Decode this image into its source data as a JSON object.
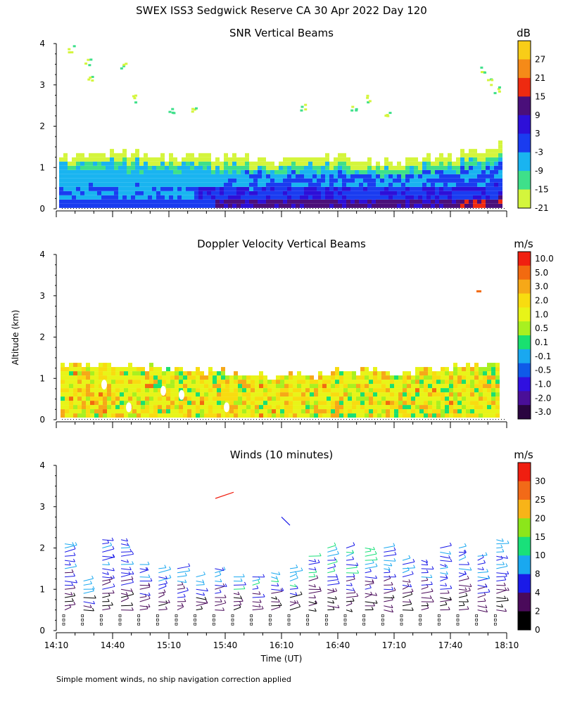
{
  "title": "SWEX ISS3 Sedgwick Reserve CA  30 Apr 2022 Day 120",
  "ylabel": "Altitude (km)",
  "xlabel": "Time (UT)",
  "footnote": "Simple moment winds, no ship navigation correction applied",
  "x_tick_labels": [
    "14:10",
    "14:40",
    "15:10",
    "15:40",
    "16:10",
    "16:40",
    "17:10",
    "17:40",
    "18:10"
  ],
  "chart_data": [
    {
      "type": "heatmap",
      "title": "SNR Vertical Beams",
      "xlabel": "Time (UT)",
      "ylabel": "Altitude (km)",
      "x_range": [
        "14:10",
        "18:10"
      ],
      "ylim": [
        0,
        4
      ],
      "y_ticks": [
        0,
        1,
        2,
        3,
        4
      ],
      "colorbar": {
        "unit": "dB",
        "levels": [
          -21,
          -15,
          -9,
          -3,
          3,
          9,
          15,
          21,
          27
        ],
        "colors": [
          "#d4f53c",
          "#3ee08a",
          "#19b4f0",
          "#1a3cf0",
          "#2d0fd8",
          "#4a0f7a",
          "#ee2a10",
          "#f58a18",
          "#f8cd18"
        ]
      },
      "echo_top_km": [
        {
          "t": "14:10",
          "top": 1.2
        },
        {
          "t": "14:40",
          "top": 1.3
        },
        {
          "t": "15:10",
          "top": 1.2
        },
        {
          "t": "15:40",
          "top": 1.2
        },
        {
          "t": "16:10",
          "top": 1.1
        },
        {
          "t": "16:40",
          "top": 1.2
        },
        {
          "t": "17:10",
          "top": 1.1
        },
        {
          "t": "17:40",
          "top": 1.2
        },
        {
          "t": "18:10",
          "top": 1.5
        }
      ]
    },
    {
      "type": "heatmap",
      "title": "Doppler Velocity Vertical Beams",
      "xlabel": "Time (UT)",
      "ylabel": "Altitude (km)",
      "x_range": [
        "14:10",
        "18:10"
      ],
      "ylim": [
        0,
        4
      ],
      "y_ticks": [
        0,
        1,
        2,
        3,
        4
      ],
      "colorbar": {
        "unit": "m/s",
        "levels": [
          10.0,
          5.0,
          3.0,
          2.0,
          1.0,
          0.5,
          0.1,
          -0.1,
          -0.5,
          -1.0,
          -2.0,
          -3.0
        ],
        "level_labels": [
          "10.0",
          "5.0",
          "3.0",
          "2.0",
          "1.0",
          "0.5",
          "0.1",
          "-0.1",
          "-0.5",
          "-1.0",
          "-2.0",
          "-3.0"
        ],
        "colors": [
          "#2a0540",
          "#4a0f98",
          "#3010e0",
          "#0f5ae8",
          "#19a8f0",
          "#19e070",
          "#a8f020",
          "#e8f418",
          "#f8dc10",
          "#f6a818",
          "#f26a10",
          "#f02010"
        ]
      },
      "echo_top_km": [
        {
          "t": "14:10",
          "top": 1.2
        },
        {
          "t": "14:40",
          "top": 1.3
        },
        {
          "t": "15:10",
          "top": 1.2
        },
        {
          "t": "15:40",
          "top": 1.1
        },
        {
          "t": "16:10",
          "top": 1.0
        },
        {
          "t": "16:40",
          "top": 1.1
        },
        {
          "t": "17:10",
          "top": 1.1
        },
        {
          "t": "17:40",
          "top": 1.2
        },
        {
          "t": "18:10",
          "top": 1.4
        }
      ]
    },
    {
      "type": "scatter",
      "title": "Winds (10 minutes)",
      "xlabel": "Time (UT)",
      "ylabel": "Altitude (km)",
      "x_range": [
        "14:10",
        "18:10"
      ],
      "ylim": [
        0,
        4
      ],
      "y_ticks": [
        0,
        1,
        2,
        3,
        4
      ],
      "colorbar": {
        "unit": "m/s",
        "levels": [
          0,
          2,
          4,
          8,
          10,
          15,
          20,
          25,
          30
        ],
        "colors": [
          "#000000",
          "#4a0a5a",
          "#1a1ae8",
          "#19a8f0",
          "#19e07a",
          "#8ce61a",
          "#f8b418",
          "#f26a18",
          "#f01e10"
        ]
      },
      "profile_times": [
        "14:10",
        "14:20",
        "14:30",
        "14:40",
        "14:50",
        "15:00",
        "15:10",
        "15:20",
        "15:30",
        "15:40",
        "15:50",
        "16:00",
        "16:10",
        "16:20",
        "16:30",
        "16:40",
        "16:50",
        "17:00",
        "17:10",
        "17:20",
        "17:30",
        "17:40",
        "17:50",
        "18:00"
      ],
      "profile_top_km": [
        2.2,
        1.2,
        2.3,
        2.3,
        1.7,
        1.6,
        1.6,
        1.4,
        1.6,
        1.4,
        1.4,
        1.5,
        1.6,
        1.9,
        2.1,
        2.1,
        2.1,
        2.1,
        1.8,
        1.8,
        2.1,
        2.1,
        1.9,
        2.3
      ]
    }
  ]
}
